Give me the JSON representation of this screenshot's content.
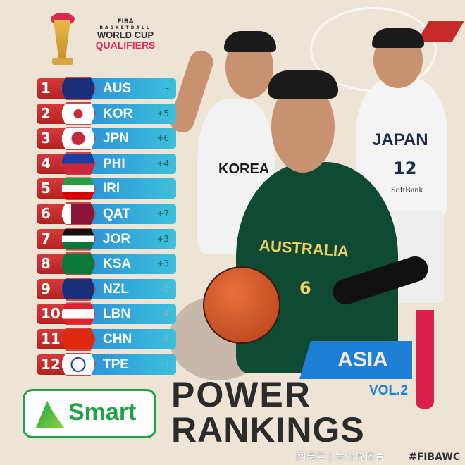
{
  "header": {
    "org": "FIBA",
    "line1": "BASKETBALL",
    "line2": "WORLD CUP",
    "line3": "QUALIFIERS"
  },
  "rankings": [
    {
      "rank": "1",
      "code": "AUS",
      "change": "-",
      "flag": "australia"
    },
    {
      "rank": "2",
      "code": "KOR",
      "change": "+5",
      "flag": "south-korea"
    },
    {
      "rank": "3",
      "code": "JPN",
      "change": "+6",
      "flag": "japan"
    },
    {
      "rank": "4",
      "code": "PHI",
      "change": "+4",
      "flag": "philippines"
    },
    {
      "rank": "5",
      "code": "IRI",
      "change": "-3",
      "flag": "iran"
    },
    {
      "rank": "6",
      "code": "QAT",
      "change": "+7",
      "flag": "qatar"
    },
    {
      "rank": "7",
      "code": "JOR",
      "change": "+3",
      "flag": "jordan"
    },
    {
      "rank": "8",
      "code": "KSA",
      "change": "+3",
      "flag": "saudi-arabia"
    },
    {
      "rank": "9",
      "code": "NZL",
      "change": "-5",
      "flag": "new-zealand"
    },
    {
      "rank": "10",
      "code": "LBN",
      "change": "-4",
      "flag": "lebanon"
    },
    {
      "rank": "11",
      "code": "CHN",
      "change": "-8",
      "flag": "china"
    },
    {
      "rank": "12",
      "code": "TPE",
      "change": "-7",
      "flag": "chinese-taipei"
    }
  ],
  "players": {
    "korea_jersey": "KOREA",
    "australia_jersey": "AUSTRALIA",
    "australia_number": "6",
    "japan_jersey": "JAPAN",
    "japan_number": "12",
    "japan_sponsor": "SoftBank"
  },
  "region": "ASIA",
  "volume": "VOL.2",
  "title_line1": "POWER",
  "title_line2": "RANKINGS",
  "sponsor": "Smart",
  "hashtag": "#FIBAWC",
  "watermark": "网易号 | 宗介说体育",
  "colors": {
    "red": "#c62a2a",
    "blue": "#2a8fd8",
    "cyan": "#3cc0dc",
    "dark": "#2b2b2b",
    "cream": "#ede4d6",
    "smart_green": "#1fa24a"
  }
}
